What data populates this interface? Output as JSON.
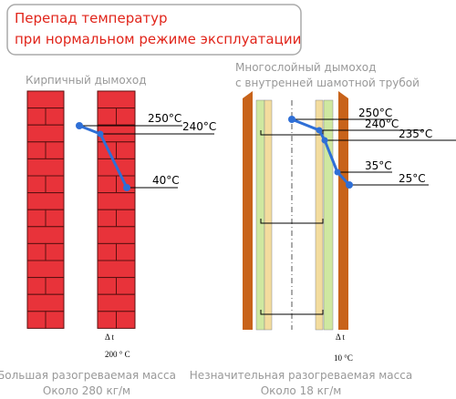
{
  "header": {
    "title_lines": [
      "Перепад температур",
      "при нормальном режиме эксплуатации"
    ]
  },
  "left": {
    "label": "Кирпичный дымоход",
    "temperatures": [
      "250°C",
      "240°C",
      "40°C"
    ],
    "delta_symbol": "Δ t",
    "delta_value": "200 ° C",
    "caption_lines": [
      "Большая разогреваемая масса",
      "Около 280 кг/м"
    ]
  },
  "right": {
    "label_lines": [
      "Многослойный дымоход",
      "с внутренней шамотной трубой"
    ],
    "temperatures": [
      "250°C",
      "240°C",
      "235°C",
      "35°C",
      "25°C"
    ],
    "delta_symbol": "Δ t",
    "delta_value": "10 °C",
    "caption_lines": [
      "Незначительная разогреваемая масса",
      "Около 18 кг/м"
    ]
  }
}
